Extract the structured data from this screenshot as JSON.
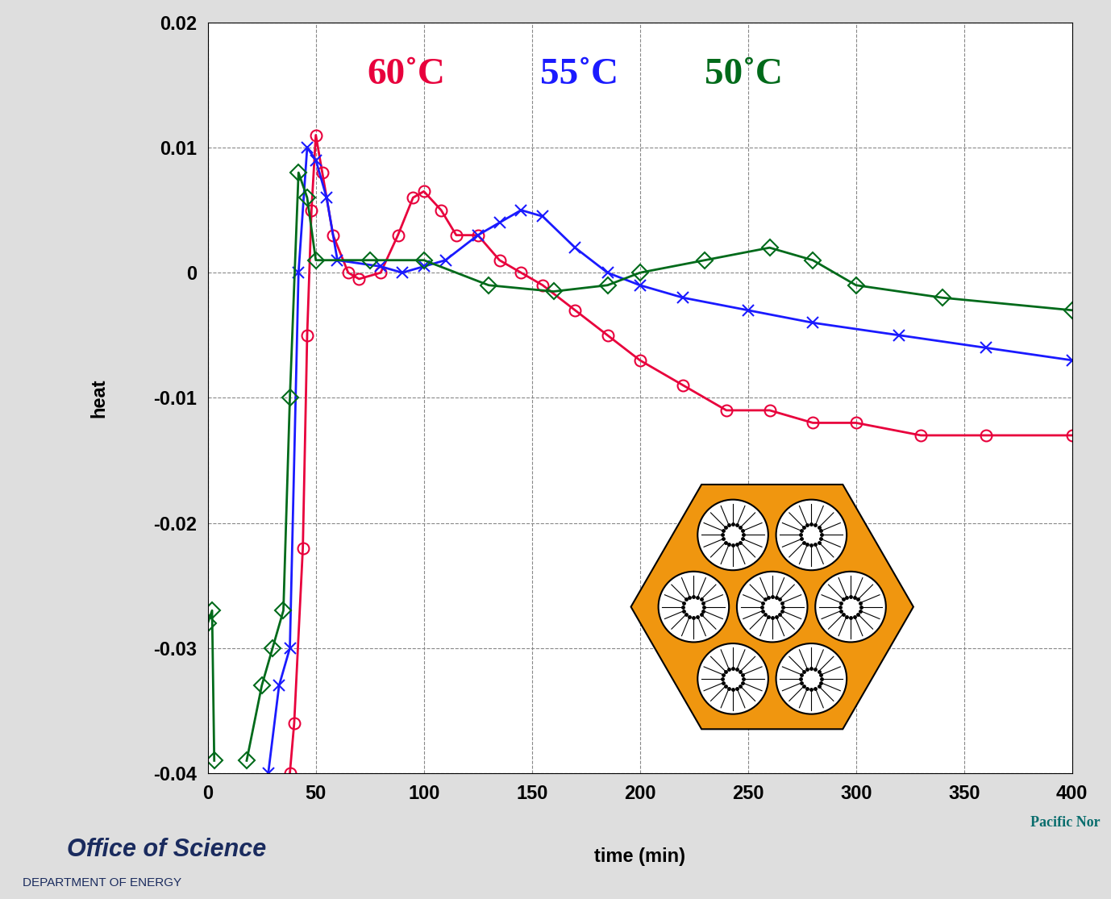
{
  "chart_data": {
    "type": "line",
    "x_label": "time (min)",
    "y_label": "heat",
    "xlim": [
      0,
      400
    ],
    "xticks": [
      0,
      50,
      100,
      150,
      200,
      250,
      300,
      350,
      400
    ],
    "ylim": [
      -0.04,
      0.02
    ],
    "yticks": [
      -0.04,
      -0.03,
      -0.02,
      -0.01,
      0,
      0.01,
      0.02
    ],
    "grid": true,
    "series": [
      {
        "name": "60˚C",
        "color": "#e8003c",
        "marker": "circle",
        "line_style": "solid",
        "x": [
          38,
          40,
          44,
          46,
          48,
          50,
          53,
          58,
          65,
          70,
          80,
          88,
          95,
          100,
          108,
          115,
          125,
          135,
          145,
          155,
          170,
          185,
          200,
          220,
          240,
          260,
          280,
          300,
          330,
          360,
          400
        ],
        "values": [
          -0.04,
          -0.036,
          -0.022,
          -0.005,
          0.005,
          0.011,
          0.008,
          0.003,
          0,
          -0.0005,
          0,
          0.003,
          0.006,
          0.0065,
          0.005,
          0.003,
          0.003,
          0.001,
          0,
          -0.001,
          -0.003,
          -0.005,
          -0.007,
          -0.009,
          -0.011,
          -0.011,
          -0.012,
          -0.012,
          -0.013,
          -0.013,
          -0.013
        ]
      },
      {
        "name": "55˚C",
        "color": "#1a1aff",
        "marker": "x",
        "line_style": "solid",
        "x": [
          28,
          33,
          38,
          42,
          46,
          50,
          55,
          60,
          80,
          90,
          100,
          110,
          125,
          135,
          145,
          155,
          170,
          185,
          200,
          220,
          250,
          280,
          320,
          360,
          400
        ],
        "values": [
          -0.04,
          -0.033,
          -0.03,
          0.0,
          0.01,
          0.009,
          0.006,
          0.001,
          0.0005,
          0,
          0.0005,
          0.001,
          0.003,
          0.004,
          0.005,
          0.0045,
          0.002,
          0,
          -0.001,
          -0.002,
          -0.003,
          -0.004,
          -0.005,
          -0.006,
          -0.007
        ]
      },
      {
        "name": "50˚C",
        "color": "#006a1a",
        "marker": "diamond",
        "line_style": "solid",
        "x": [
          0,
          2,
          3,
          null,
          18,
          25,
          30,
          35,
          38,
          42,
          46,
          50,
          75,
          100,
          130,
          160,
          185,
          200,
          230,
          260,
          280,
          300,
          340,
          400
        ],
        "values": [
          -0.028,
          -0.027,
          -0.039,
          null,
          -0.039,
          -0.033,
          -0.03,
          -0.027,
          -0.01,
          0.008,
          0.006,
          0.001,
          0.001,
          0.001,
          -0.001,
          -0.0015,
          -0.001,
          0,
          0.001,
          0.002,
          0.001,
          -0.001,
          -0.002,
          -0.003
        ]
      }
    ],
    "annotations": [
      "Office of Science",
      "DEPARTMENT OF ENERGY",
      "Pacific Nor"
    ]
  }
}
